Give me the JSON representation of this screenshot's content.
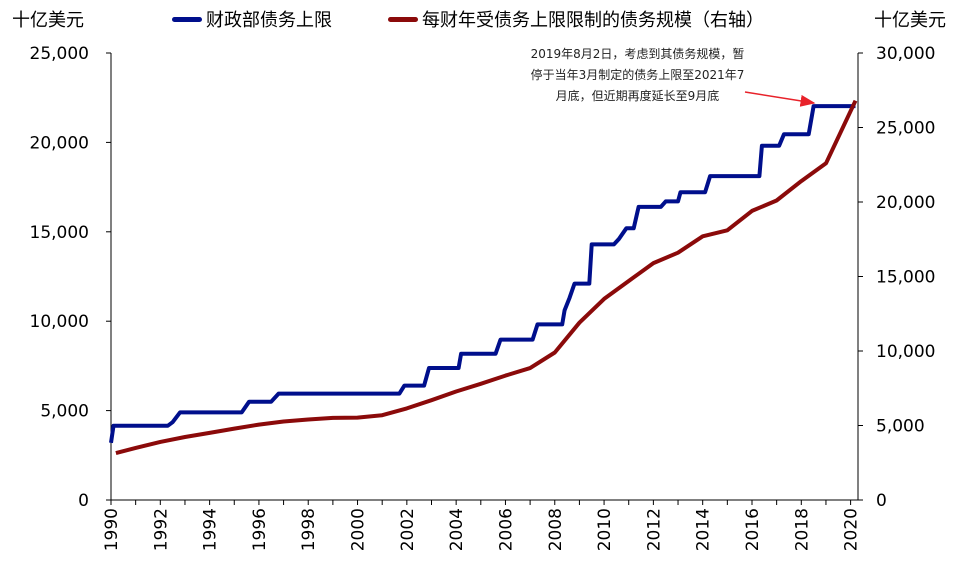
{
  "units": {
    "left": "十亿美元",
    "right": "十亿美元"
  },
  "annotation": "2019年8月2日，考虑到其债务规模，暂停于当年3月制定的债务上限至2021年7月底，但近期再度延长至9月底",
  "colors": {
    "debt_limit": "#000f8c",
    "total_debt": "#8b0a0a",
    "arrow": "#e8222a",
    "axis": "#000000"
  },
  "chart_data": {
    "type": "line",
    "x_ticks": [
      "1990",
      "1992",
      "1994",
      "1996",
      "1998",
      "2000",
      "2002",
      "2004",
      "2006",
      "2008",
      "2010",
      "2012",
      "2014",
      "2016",
      "2018",
      "2020"
    ],
    "xlim": [
      1990,
      2020.3
    ],
    "y_left": {
      "lim": [
        0,
        25000
      ],
      "ticks": [
        "0",
        "5,000",
        "10,000",
        "15,000",
        "20,000",
        "25,000"
      ]
    },
    "y_right": {
      "lim": [
        0,
        30000
      ],
      "ticks": [
        "0",
        "5,000",
        "10,000",
        "15,000",
        "20,000",
        "25,000",
        "30,000"
      ]
    },
    "series": [
      {
        "name": "财政部债务上限",
        "axis": "left",
        "step": true,
        "points": [
          [
            1990.0,
            3200
          ],
          [
            1990.1,
            4150
          ],
          [
            1991.0,
            4150
          ],
          [
            1992.3,
            4150
          ],
          [
            1992.5,
            4350
          ],
          [
            1992.8,
            4900
          ],
          [
            1993.2,
            4900
          ],
          [
            1993.5,
            4900
          ],
          [
            1995.0,
            4900
          ],
          [
            1995.3,
            4900
          ],
          [
            1995.6,
            5500
          ],
          [
            1996.5,
            5500
          ],
          [
            1996.8,
            5950
          ],
          [
            1997.5,
            5950
          ],
          [
            2001.7,
            5950
          ],
          [
            2001.9,
            6400
          ],
          [
            2002.7,
            6400
          ],
          [
            2002.9,
            7380
          ],
          [
            2004.1,
            7380
          ],
          [
            2004.2,
            8180
          ],
          [
            2005.6,
            8180
          ],
          [
            2005.8,
            8970
          ],
          [
            2007.1,
            8970
          ],
          [
            2007.3,
            9820
          ],
          [
            2008.3,
            9820
          ],
          [
            2008.4,
            10615
          ],
          [
            2008.6,
            11315
          ],
          [
            2008.8,
            12104
          ],
          [
            2009.4,
            12104
          ],
          [
            2009.5,
            14294
          ],
          [
            2010.4,
            14294
          ],
          [
            2010.6,
            14600
          ],
          [
            2010.9,
            15194
          ],
          [
            2011.2,
            15194
          ],
          [
            2011.4,
            16394
          ],
          [
            2012.3,
            16394
          ],
          [
            2012.5,
            16699
          ],
          [
            2013.0,
            16699
          ],
          [
            2013.1,
            17212
          ],
          [
            2014.1,
            17212
          ],
          [
            2014.3,
            18113
          ],
          [
            2016.3,
            18113
          ],
          [
            2016.4,
            19808
          ],
          [
            2017.1,
            19808
          ],
          [
            2017.3,
            20456
          ],
          [
            2018.3,
            20456
          ],
          [
            2018.5,
            22030
          ],
          [
            2020.2,
            22030
          ]
        ]
      },
      {
        "name": "每财年受债务上限限制的债务规模（右轴）",
        "axis": "right",
        "step": false,
        "points": [
          [
            1990.2,
            3150
          ],
          [
            1991,
            3500
          ],
          [
            1992,
            3900
          ],
          [
            1993,
            4230
          ],
          [
            1994,
            4500
          ],
          [
            1995,
            4790
          ],
          [
            1996,
            5060
          ],
          [
            1997,
            5270
          ],
          [
            1998,
            5400
          ],
          [
            1999,
            5510
          ],
          [
            2000,
            5530
          ],
          [
            2001,
            5690
          ],
          [
            2002,
            6150
          ],
          [
            2003,
            6700
          ],
          [
            2004,
            7280
          ],
          [
            2005,
            7800
          ],
          [
            2006,
            8350
          ],
          [
            2007,
            8850
          ],
          [
            2008,
            9900
          ],
          [
            2009,
            11900
          ],
          [
            2010,
            13500
          ],
          [
            2011,
            14700
          ],
          [
            2012,
            15900
          ],
          [
            2013,
            16600
          ],
          [
            2014,
            17700
          ],
          [
            2015,
            18100
          ],
          [
            2016,
            19400
          ],
          [
            2017,
            20100
          ],
          [
            2018,
            21400
          ],
          [
            2019,
            22600
          ],
          [
            2020.2,
            26800
          ]
        ]
      }
    ]
  }
}
